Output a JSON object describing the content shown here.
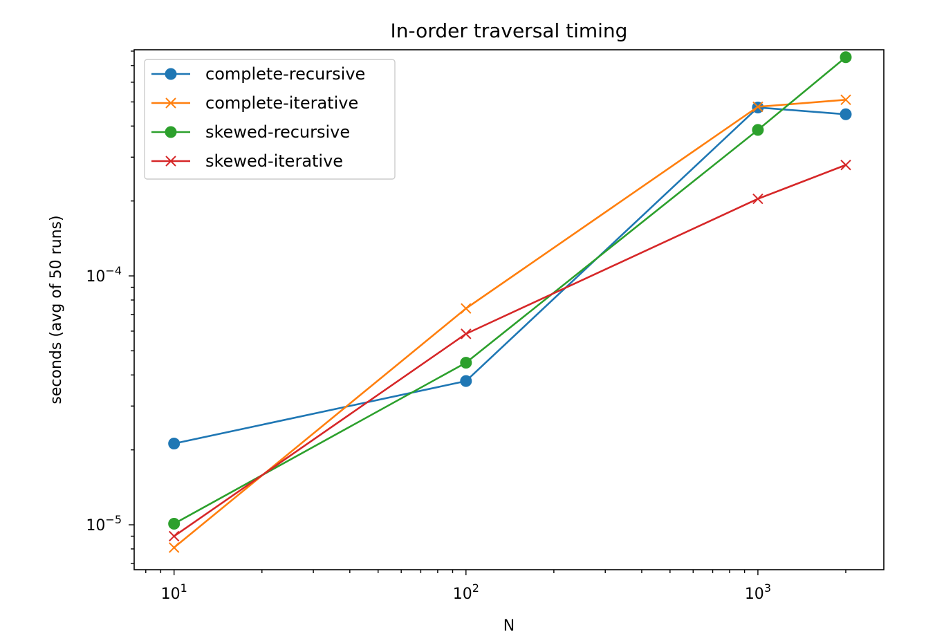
{
  "chart_data": {
    "type": "line",
    "title": "In-order traversal timing",
    "xlabel": "N",
    "ylabel": "seconds (avg of 50 runs)",
    "xscale": "log",
    "yscale": "log",
    "xlim": [
      7.3,
      2700
    ],
    "ylim": [
      6.6e-06,
      0.00081
    ],
    "x_ticks": [
      {
        "value": 10,
        "base": "10",
        "exp": "1"
      },
      {
        "value": 100,
        "base": "10",
        "exp": "2"
      },
      {
        "value": 1000,
        "base": "10",
        "exp": "3"
      }
    ],
    "y_ticks": [
      {
        "value": 1e-05,
        "base": "10",
        "exp": "−5"
      },
      {
        "value": 0.0001,
        "base": "10",
        "exp": "−4"
      }
    ],
    "grid": false,
    "legend": "top-left",
    "x": [
      10,
      100,
      1000,
      2000
    ],
    "series": [
      {
        "name": "complete-recursive",
        "color": "#1f77b4",
        "marker": "circle",
        "values": [
          2.12e-05,
          3.78e-05,
          0.000475,
          0.000446
        ]
      },
      {
        "name": "complete-iterative",
        "color": "#ff7f0e",
        "marker": "x",
        "values": [
          8.1e-06,
          7.4e-05,
          0.000478,
          0.00051
        ]
      },
      {
        "name": "skewed-recursive",
        "color": "#2ca02c",
        "marker": "circle",
        "values": [
          1.01e-05,
          4.48e-05,
          0.000386,
          0.000756
        ]
      },
      {
        "name": "skewed-iterative",
        "color": "#d62728",
        "marker": "x",
        "values": [
          9e-06,
          5.85e-05,
          0.000204,
          0.000279
        ]
      }
    ]
  }
}
